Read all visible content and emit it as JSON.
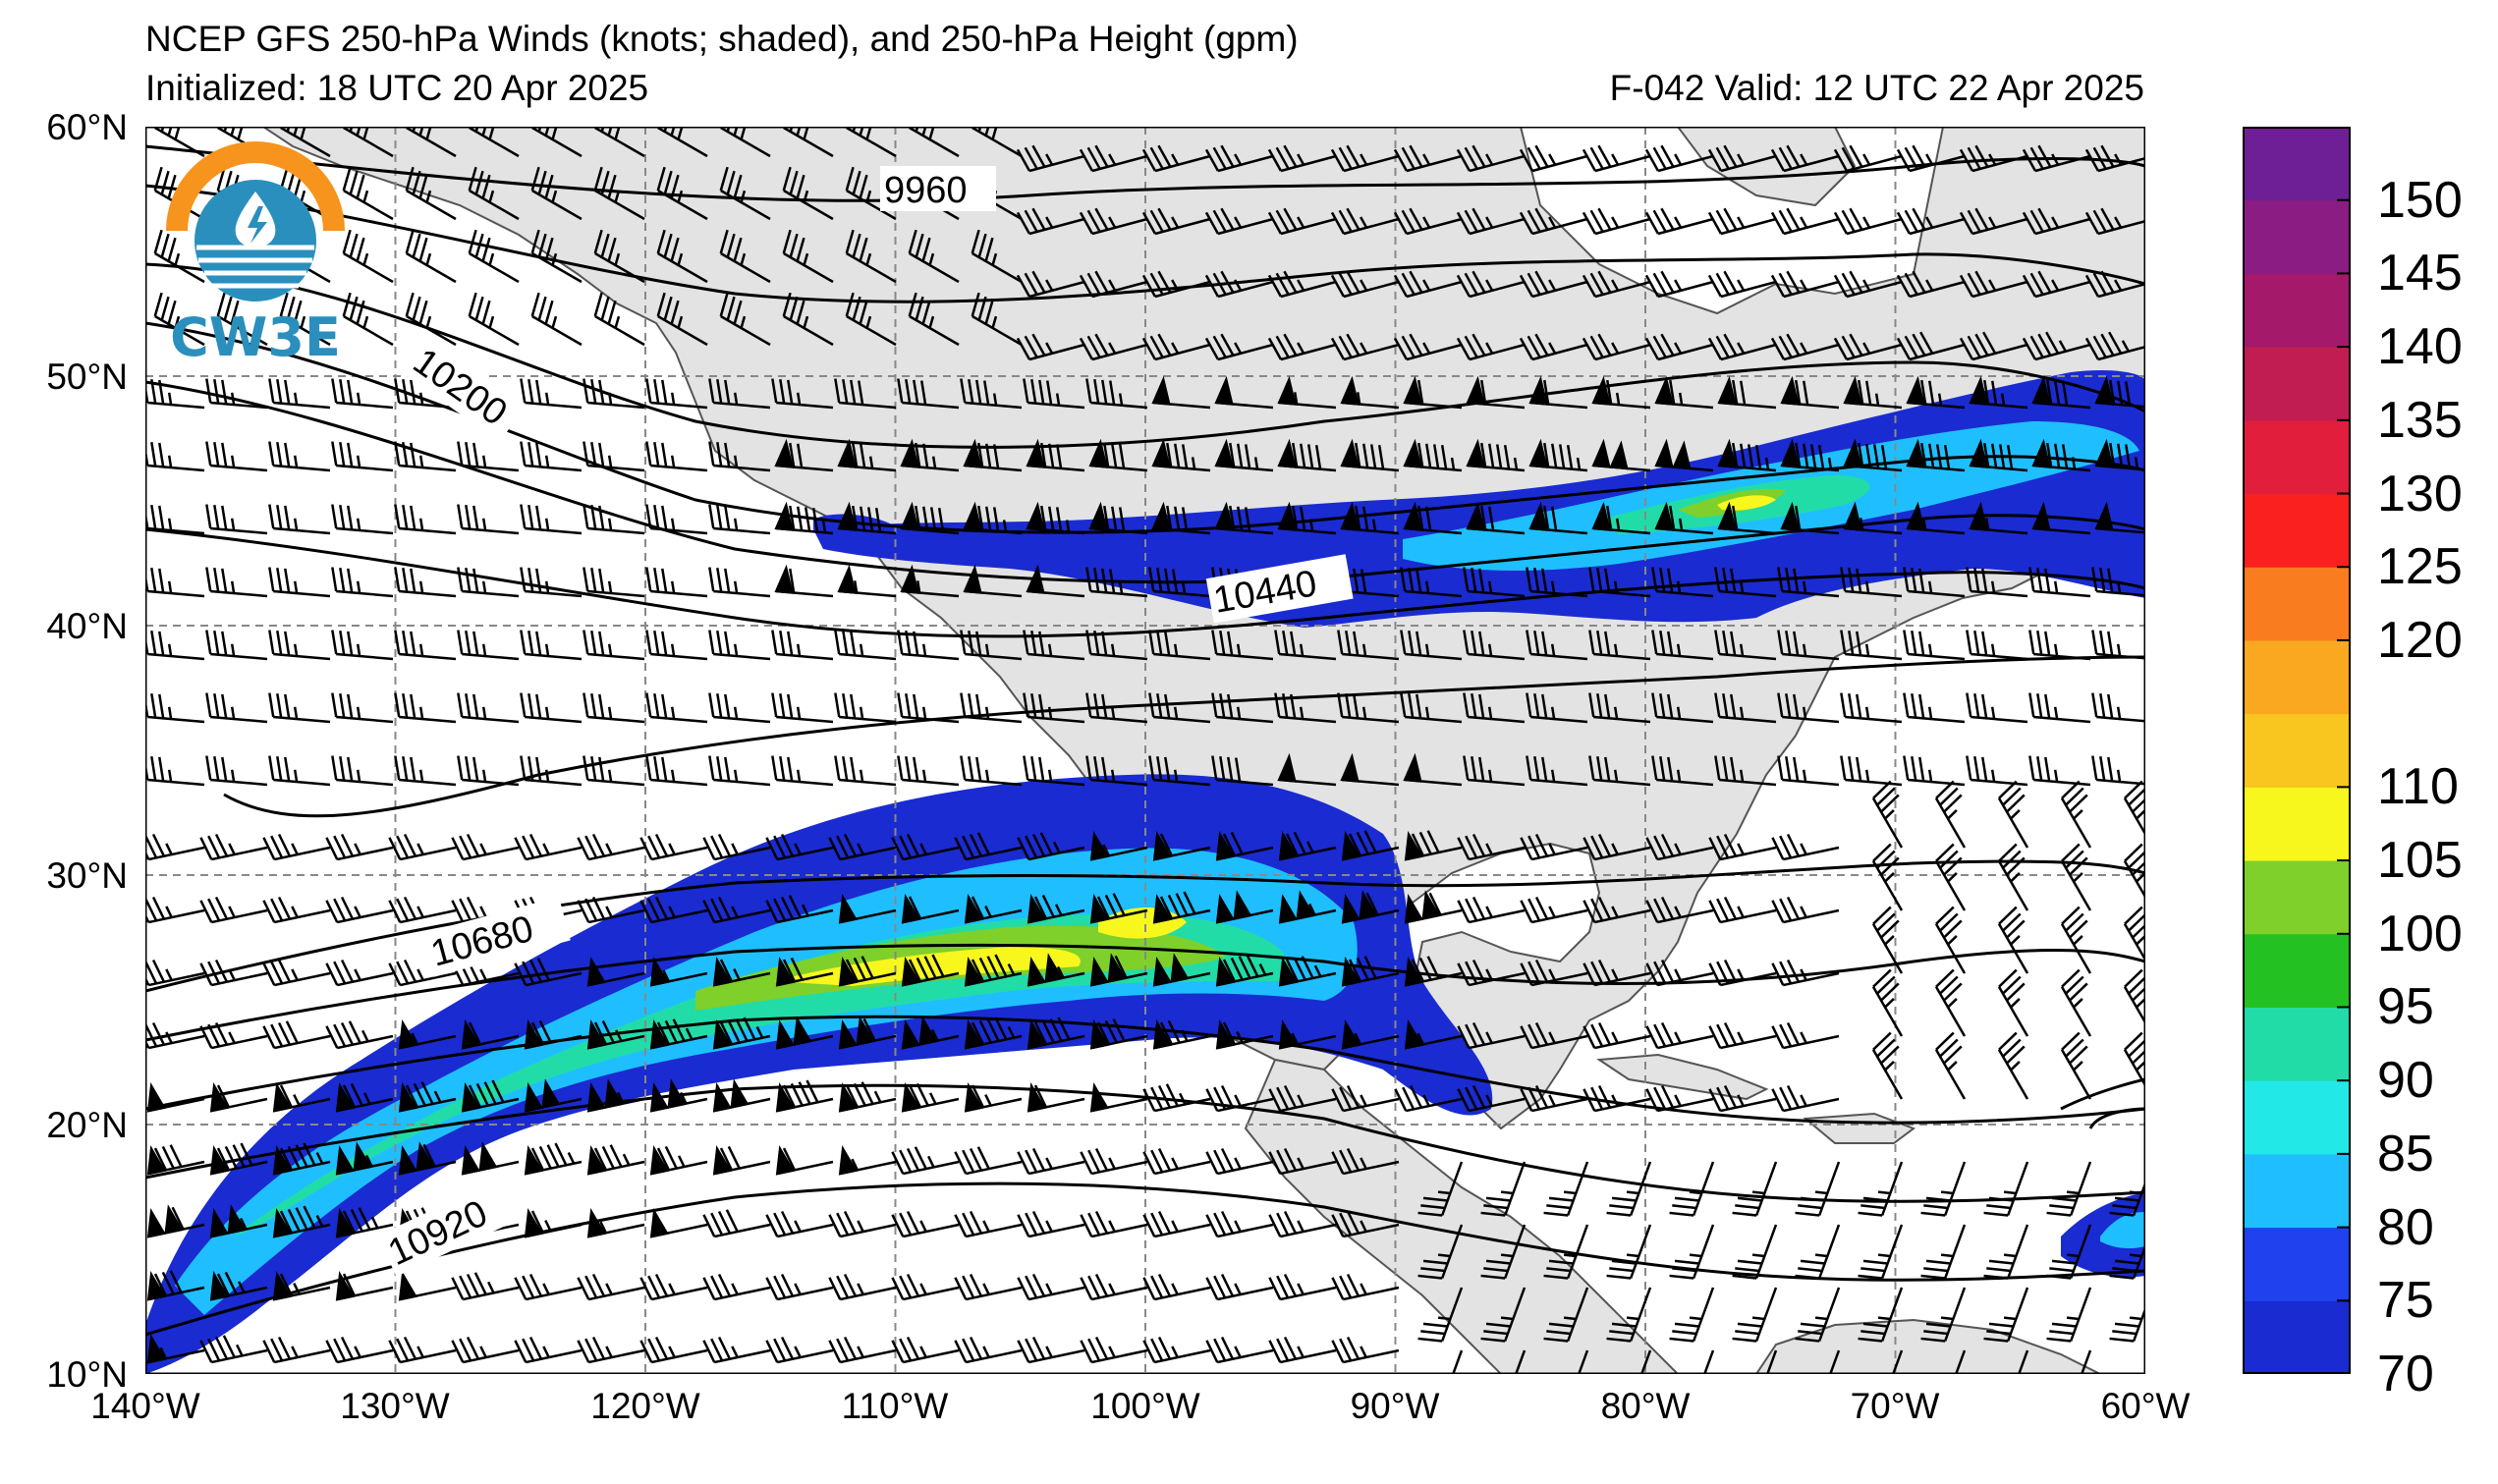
{
  "header": {
    "title": "NCEP GFS 250-hPa Winds (knots; shaded), and 250-hPa Height (gpm)",
    "initialized": "Initialized: 18 UTC 20 Apr 2025",
    "valid": "F-042  Valid: 12 UTC 22 Apr 2025"
  },
  "logo": {
    "text": "CW3E",
    "colors": {
      "orange": "#f7941d",
      "blue": "#2a8fbd"
    }
  },
  "axes": {
    "lat_ticks": [
      "10°N",
      "20°N",
      "30°N",
      "40°N",
      "50°N",
      "60°N"
    ],
    "lon_ticks": [
      "140°W",
      "130°W",
      "120°W",
      "110°W",
      "100°W",
      "90°W",
      "80°W",
      "70°W",
      "60°W"
    ],
    "extent": {
      "lon": [
        -140,
        -60
      ],
      "lat": [
        10,
        60
      ]
    },
    "grid": true
  },
  "contours": {
    "labels": [
      "9960",
      "10200",
      "10440",
      "10680",
      "10920"
    ],
    "interval_gpm": 120,
    "color": "#000000"
  },
  "jets": [
    {
      "name": "southern",
      "peak_kt": 110
    },
    {
      "name": "northern",
      "peak_kt": 110
    }
  ],
  "colorbar": {
    "levels": [
      70,
      75,
      80,
      85,
      90,
      95,
      100,
      105,
      110,
      115,
      120,
      125,
      130,
      135,
      140,
      145,
      150,
      155
    ],
    "tick_labels": [
      "70",
      "75",
      "80",
      "85",
      "90",
      "95",
      "100",
      "105",
      "110",
      "120",
      "125",
      "130",
      "135",
      "140",
      "145",
      "150"
    ],
    "colors": [
      "#1a2bd1",
      "#1f41ee",
      "#1fbfff",
      "#22e8e8",
      "#22dca8",
      "#23c122",
      "#7fd02a",
      "#f7f71e",
      "#f9c61f",
      "#f9a81f",
      "#f97c1f",
      "#fb2020",
      "#e11e3c",
      "#c21d52",
      "#a4196a",
      "#8a1c83",
      "#6e1f96"
    ],
    "land_color": "#e3e3e3"
  }
}
